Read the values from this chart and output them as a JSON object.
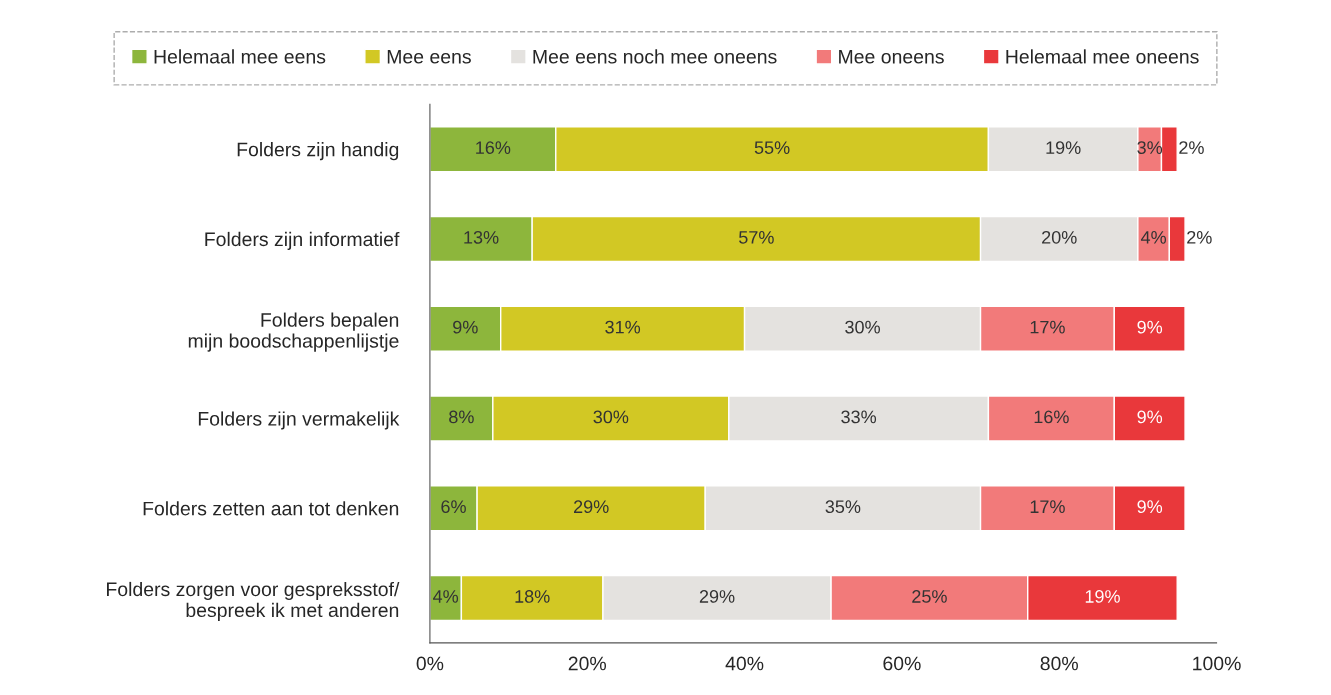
{
  "chart_data": {
    "type": "bar",
    "orientation": "horizontal",
    "stacked": true,
    "legend": "top",
    "grid": false,
    "categories": [
      "Folders zijn handig",
      "Folders zijn informatief",
      "Folders bepalen\nmijn boodschappenlijstje",
      "Folders zijn vermakelijk",
      "Folders zetten aan tot denken",
      "Folders zorgen voor gespreksstof/\nbespreek ik met anderen"
    ],
    "series": [
      {
        "name": "Helemaal mee eens",
        "color": "#8db63c",
        "values": [
          16,
          13,
          9,
          8,
          6,
          4
        ],
        "value_labels": [
          "16%",
          "13%",
          "9%",
          "8%",
          "6%",
          "4%"
        ]
      },
      {
        "name": "Mee eens",
        "color": "#d2c824",
        "values": [
          55,
          57,
          31,
          30,
          29,
          18
        ],
        "value_labels": [
          "55%",
          "57%",
          "31%",
          "30%",
          "29%",
          "18%"
        ]
      },
      {
        "name": "Mee eens noch mee oneens",
        "color": "#e4e2df",
        "values": [
          19,
          20,
          30,
          33,
          35,
          29
        ],
        "value_labels": [
          "19%",
          "20%",
          "30%",
          "33%",
          "35%",
          "29%"
        ]
      },
      {
        "name": "Mee oneens",
        "color": "#f27a7a",
        "values": [
          3,
          4,
          17,
          16,
          17,
          25
        ],
        "value_labels": [
          "3%",
          "4%",
          "17%",
          "16%",
          "17%",
          "25%"
        ]
      },
      {
        "name": "Helemaal mee oneens",
        "color": "#e9383b",
        "values": [
          2,
          2,
          9,
          9,
          9,
          19
        ],
        "value_labels": [
          "2%",
          "2%",
          "9%",
          "9%",
          "9%",
          "19%"
        ]
      }
    ],
    "xlim": [
      0,
      100
    ],
    "xticks": [
      {
        "value": 0,
        "label": "0%"
      },
      {
        "value": 20,
        "label": "20%"
      },
      {
        "value": 40,
        "label": "40%"
      },
      {
        "value": 60,
        "label": "60%"
      },
      {
        "value": 80,
        "label": "80%"
      },
      {
        "value": 100,
        "label": "100%"
      }
    ]
  }
}
